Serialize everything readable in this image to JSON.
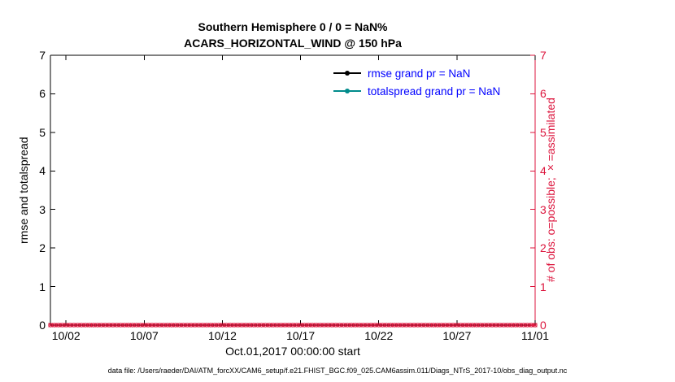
{
  "figure": {
    "title_line1": "Southern Hemisphere 0 / 0 = NaN%",
    "title_line2": "ACARS_HORIZONTAL_WIND @ 150 hPa",
    "ylabel_left": "rmse and totalspread",
    "ylabel_right": "# of obs: o=possible; ×=assimilated",
    "xlabel": "Oct.01,2017 00:00:00 start",
    "footer": "data file: /Users/raeder/DAI/ATM_forcXX/CAM6_setup/f.e21.FHIST_BGC.f09_025.CAM6assim.011/Diags_NTrS_2017-10/obs_diag_output.nc"
  },
  "colors": {
    "axis_left": "#000000",
    "axis_right": "#dc143c",
    "legend_text": "#0000ff",
    "rmse": "#000000",
    "totalspread": "#008b8b",
    "obs_markers": "#dc143c",
    "background": "#ffffff"
  },
  "chart_data": {
    "type": "line",
    "title": "Southern Hemisphere 0 / 0 = NaN% — ACARS_HORIZONTAL_WIND @ 150 hPa",
    "xlabel": "Oct.01,2017 00:00:00 start",
    "ylabel_left": "rmse and totalspread",
    "ylabel_right": "# of obs: o=possible; ×=assimilated",
    "xlim_days": [
      0,
      31
    ],
    "ylim": [
      0,
      7
    ],
    "x_ticks": [
      "10/02",
      "10/07",
      "10/12",
      "10/17",
      "10/22",
      "10/27",
      "11/01"
    ],
    "x_tick_days": [
      1,
      6,
      11,
      16,
      21,
      26,
      31
    ],
    "y_ticks_left": [
      0,
      1,
      2,
      3,
      4,
      5,
      6,
      7
    ],
    "y_ticks_right": [
      0,
      1,
      2,
      3,
      4,
      5,
      6,
      7
    ],
    "grid": false,
    "legend_position": "upper-center-inside",
    "series": [
      {
        "name": "rmse grand pr = NaN",
        "color_key": "rmse",
        "grand_mean": "NaN",
        "values": []
      },
      {
        "name": "totalspread grand pr = NaN",
        "color_key": "totalspread",
        "grand_mean": "NaN",
        "values": []
      }
    ],
    "obs_markers": {
      "y_value": 0,
      "count": 125,
      "color_key": "obs_markers",
      "symbols": [
        "o",
        "×"
      ]
    }
  }
}
